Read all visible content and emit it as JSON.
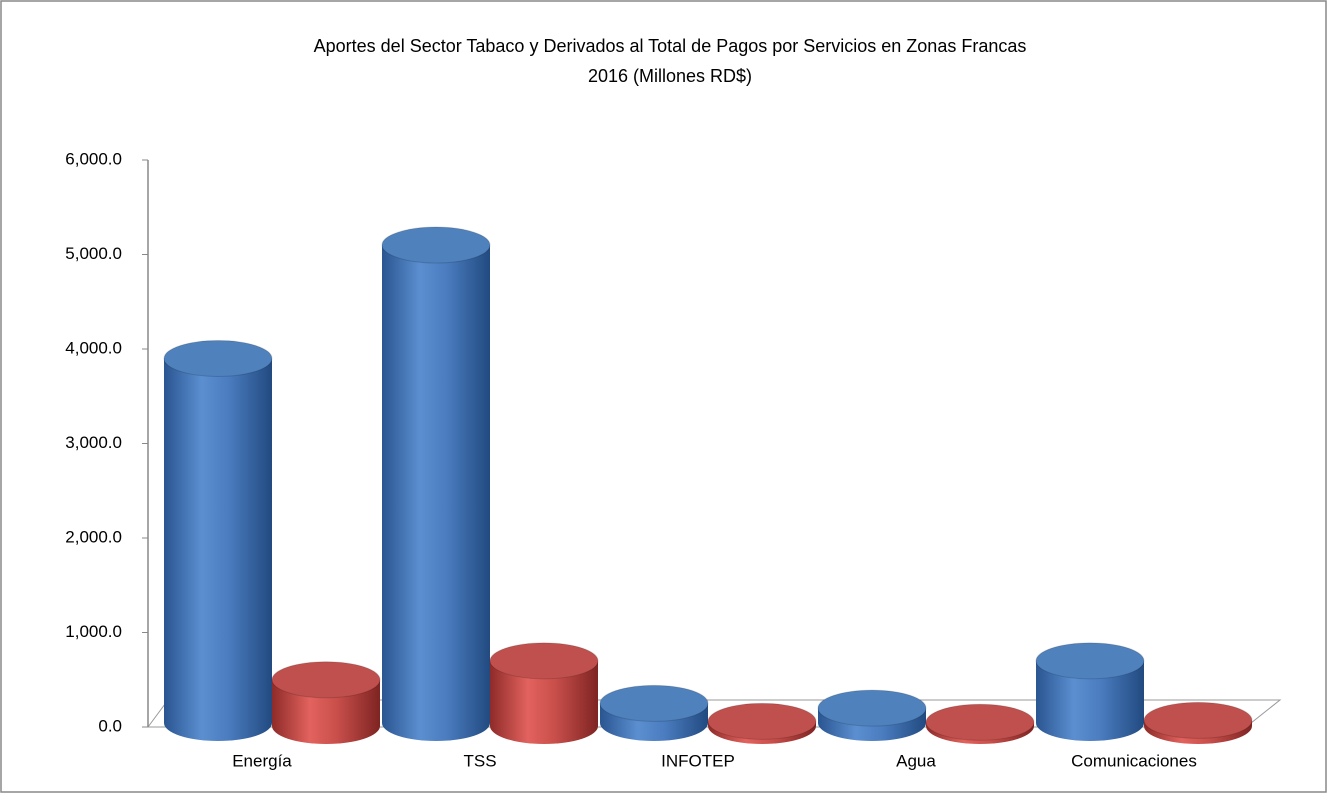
{
  "chart_data": {
    "type": "bar",
    "title": "Aportes del Sector Tabaco y Derivados al Total de Pagos por Servicios en Zonas Francas",
    "subtitle": "2016  (Millones RD$)",
    "categories": [
      "Energía",
      "TSS",
      "INFOTEP",
      "Agua",
      "Comunicaciones"
    ],
    "series": [
      {
        "color": "#4f81bd",
        "values": [
          3900,
          5100,
          250,
          200,
          700
        ]
      },
      {
        "color": "#c0504d",
        "values": [
          500,
          700,
          60,
          50,
          70
        ]
      }
    ],
    "ylim": [
      0,
      6000
    ],
    "yticks": [
      {
        "value": 0,
        "label": "0.0"
      },
      {
        "value": 1000,
        "label": "1,000.0"
      },
      {
        "value": 2000,
        "label": "2,000.0"
      },
      {
        "value": 3000,
        "label": "3,000.0"
      },
      {
        "value": 4000,
        "label": "4,000.0"
      },
      {
        "value": 5000,
        "label": "5,000.0"
      },
      {
        "value": 6000,
        "label": "6,000.0"
      }
    ],
    "grid": false
  }
}
